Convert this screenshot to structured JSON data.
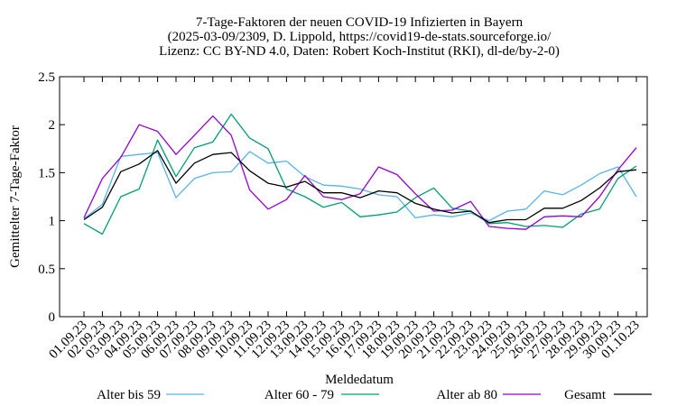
{
  "chart_data": {
    "type": "line",
    "title_lines": [
      "7-Tage-Faktoren der neuen COVID-19 Infizierten in Bayern",
      "(2025-03-09/2309, D. Lippold, https://covid19-de-stats.sourceforge.io/",
      "Lizenz: CC BY-ND 4.0, Daten: Robert Koch-Institut (RKI), dl-de/by-2-0)"
    ],
    "xlabel": "Meldedatum",
    "ylabel": "Gemittelter 7-Tage-Faktor",
    "ylim": [
      0,
      2.5
    ],
    "yticks": [
      "0",
      "0.5",
      "1",
      "1.5",
      "2",
      "2.5"
    ],
    "grid": false,
    "legend_position": "bottom",
    "x": [
      "01.09.23",
      "02.09.23",
      "03.09.23",
      "04.09.23",
      "05.09.23",
      "06.09.23",
      "07.09.23",
      "08.09.23",
      "09.09.23",
      "10.09.23",
      "11.09.23",
      "12.09.23",
      "13.09.23",
      "14.09.23",
      "15.09.23",
      "16.09.23",
      "17.09.23",
      "18.09.23",
      "19.09.23",
      "20.09.23",
      "21.09.23",
      "22.09.23",
      "23.09.23",
      "24.09.23",
      "25.09.23",
      "26.09.23",
      "27.09.23",
      "28.09.23",
      "29.09.23",
      "30.09.23",
      "01.10.23"
    ],
    "series": [
      {
        "name": "Alter bis 59",
        "color": "#56b4e9",
        "values": [
          1.02,
          1.17,
          1.67,
          1.69,
          1.71,
          1.24,
          1.44,
          1.5,
          1.51,
          1.72,
          1.6,
          1.62,
          1.46,
          1.37,
          1.36,
          1.33,
          1.27,
          1.25,
          1.03,
          1.06,
          1.04,
          1.08,
          1.0,
          1.1,
          1.12,
          1.31,
          1.27,
          1.37,
          1.49,
          1.56,
          1.25
        ]
      },
      {
        "name": "Alter 60 - 79",
        "color": "#009e73",
        "values": [
          0.97,
          0.86,
          1.25,
          1.33,
          1.84,
          1.46,
          1.76,
          1.82,
          2.11,
          1.86,
          1.75,
          1.33,
          1.25,
          1.14,
          1.19,
          1.04,
          1.06,
          1.09,
          1.24,
          1.34,
          1.13,
          1.1,
          0.97,
          0.98,
          0.94,
          0.95,
          0.93,
          1.07,
          1.12,
          1.44,
          1.57
        ]
      },
      {
        "name": "Alter ab 80",
        "color": "#9400d3",
        "values": [
          1.03,
          1.44,
          1.66,
          2.0,
          1.93,
          1.69,
          1.89,
          2.09,
          1.89,
          1.32,
          1.12,
          1.22,
          1.47,
          1.25,
          1.22,
          1.28,
          1.56,
          1.48,
          1.28,
          1.1,
          1.11,
          1.2,
          0.94,
          0.92,
          0.91,
          1.04,
          1.05,
          1.04,
          1.25,
          1.53,
          1.76
        ]
      },
      {
        "name": "Gesamt",
        "color": "#000000",
        "values": [
          1.01,
          1.14,
          1.51,
          1.59,
          1.73,
          1.39,
          1.6,
          1.69,
          1.71,
          1.52,
          1.39,
          1.35,
          1.41,
          1.29,
          1.29,
          1.24,
          1.31,
          1.29,
          1.18,
          1.12,
          1.08,
          1.1,
          0.98,
          1.01,
          1.01,
          1.13,
          1.13,
          1.21,
          1.34,
          1.51,
          1.53
        ]
      }
    ]
  }
}
